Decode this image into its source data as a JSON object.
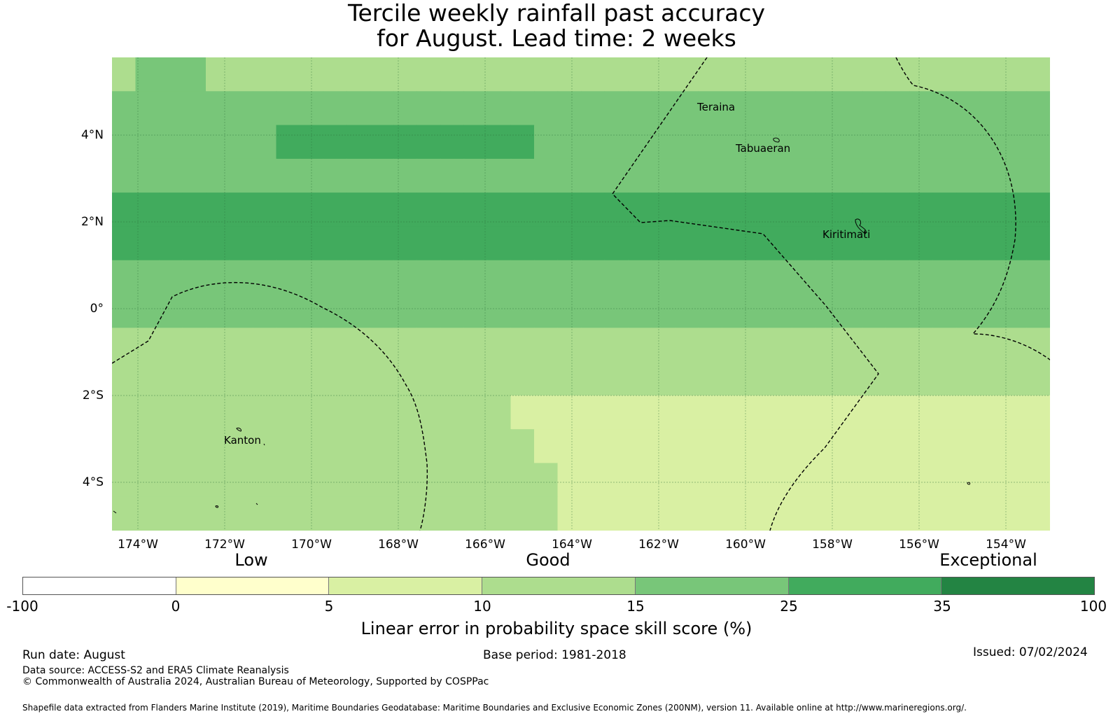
{
  "title": {
    "line1": "Tercile weekly rainfall past accuracy",
    "line2": "for August. Lead time: 2 weeks"
  },
  "map": {
    "lon_ticks": [
      "174°W",
      "172°W",
      "170°W",
      "168°W",
      "166°W",
      "164°W",
      "162°W",
      "160°W",
      "158°W",
      "156°W",
      "154°W"
    ],
    "lat_ticks": [
      "4°N",
      "2°N",
      "0°",
      "2°S",
      "4°S"
    ],
    "places": [
      "Teraina",
      "Tabuaeran",
      "Kiritimati",
      "Kanton"
    ],
    "skill_grid_category_rows": [
      "3444333333333333333333333333333333333333",
      "4444444444444444444444444444444444444444",
      "4444444555555555554444444444444444444444",
      "4444444444444444444444444444444444444444",
      "5555555555555555555555555555555555555555",
      "5555555555555555555555555555555555555555",
      "4444444444444444444444444444444444444444",
      "4444444444444444444444444444444444444444",
      "3333333333333333333333333333333333333333",
      "3333333333333333333333333333333333333333",
      "3333333333333333322222222222222222222222",
      "3333333333333333332222222222222222222222",
      "3333333333333333333222222222222222222222",
      "3333333333333333333222222222222222222222"
    ]
  },
  "colorbar": {
    "categories": [
      "Low",
      "Good",
      "Exceptional"
    ],
    "ticks": [
      "-100",
      "0",
      "5",
      "10",
      "15",
      "25",
      "35",
      "100"
    ],
    "colors": [
      "#ffffff",
      "#ffffcc",
      "#d9f0a3",
      "#addd8e",
      "#78c679",
      "#41ab5d",
      "#238443"
    ],
    "label": "Linear error in probability space skill score (%)"
  },
  "footer": {
    "run_date": "Run date: August",
    "base_period": "Base period: 1981-2018",
    "issued": "Issued: 07/02/2024",
    "data_source": "Data source: ACCESS-S2 and ERA5 Climate Reanalysis",
    "copyright": "© Commonwealth of Australia 2024, Australian Bureau of Meteorology, Supported by COSPPac",
    "shapefile": "Shapefile data extracted from Flanders Marine Institute (2019), Maritime Boundaries Geodatabase: Maritime Boundaries and Exclusive Economic Zones (200NM), version 11. Available online at http://www.marineregions.org/."
  }
}
